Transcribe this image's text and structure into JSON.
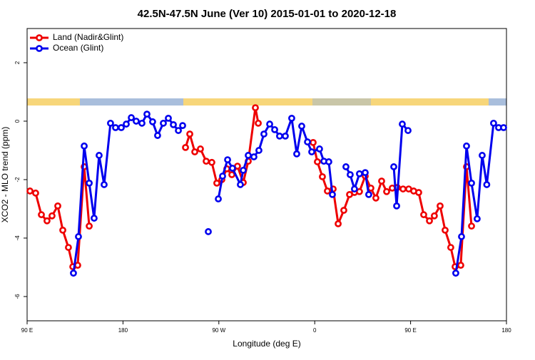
{
  "chart_data": {
    "type": "line",
    "title": "42.5N-47.5N June (Ver 10)   2015-01-01 to 2020-12-18",
    "x_label": "Longitude (deg E)",
    "y_label": "XCO2 - MLO trend (ppm)",
    "xlim": [
      90,
      540
    ],
    "xticks": [
      {
        "value": 90,
        "label": "90 E"
      },
      180,
      {
        "value": 270,
        "label": "90 W"
      },
      {
        "value": 360,
        "label": "0"
      },
      {
        "value": 450,
        "label": "90 E"
      },
      {
        "value": 540,
        "label": "180"
      }
    ],
    "ylim": [
      -6.83,
      3.17
    ],
    "yticks": [
      2,
      0,
      -2,
      -4,
      -6
    ],
    "legend": "top-left",
    "series": [
      {
        "name": "Land (Nadir&Glint)",
        "color": "#ee0000",
        "x": [
          92.7,
          98.0,
          103.4,
          108.7,
          113.4,
          118.8,
          123.5,
          128.8,
          132.9,
          137.5,
          143.6,
          148.3,
          null,
          238.7,
          242.7,
          247.4,
          252.7,
          258.1,
          263.4,
          268.1,
          272.8,
          277.5,
          282.2,
          287.5,
          292.9,
          297.6,
          304.3,
          307.0,
          null,
          358.5,
          362.5,
          367.2,
          371.9,
          377.3,
          382.0,
          387.3,
          392.7,
          397.3,
          402.0,
          407.4,
          412.7,
          417.4,
          422.8,
          427.5,
          432.8,
          437.5,
          442.9,
          448.2,
          452.9,
          457.6,
          462.3,
          467.7,
          472.3,
          477.7,
          482.4,
          487.7,
          491.8,
          497.1,
          502.5,
          507.2
        ],
        "values": [
          -2.39,
          -2.46,
          -3.2,
          -3.41,
          -3.24,
          -2.9,
          -3.73,
          -4.32,
          -4.98,
          -4.93,
          -1.56,
          -3.59,
          null,
          -0.9,
          -0.44,
          -1.05,
          -0.95,
          -1.37,
          -1.41,
          -2.12,
          -2.0,
          -1.63,
          -1.83,
          -1.54,
          -2.1,
          -1.37,
          0.46,
          -0.07,
          null,
          -0.73,
          -1.39,
          -1.9,
          -2.39,
          -2.32,
          -3.51,
          -3.05,
          -2.51,
          -2.44,
          -2.41,
          -1.88,
          -2.29,
          -2.63,
          -2.05,
          -2.41,
          -2.29,
          -2.27,
          -2.32,
          -2.32,
          -2.39,
          -2.44,
          -3.2,
          -3.41,
          -3.24,
          -2.9,
          -3.73,
          -4.32,
          -4.98,
          -4.93,
          -1.56,
          -3.59
        ]
      },
      {
        "name": "Ocean (Glint)",
        "color": "#0000ee",
        "x": [
          133.5,
          138.2,
          143.6,
          148.3,
          152.9,
          157.6,
          162.3,
          168.3,
          173.0,
          178.4,
          183.1,
          187.8,
          192.4,
          197.8,
          202.5,
          207.8,
          212.5,
          217.9,
          222.6,
          227.3,
          232.0,
          236.0,
          null,
          260.1,
          null,
          269.5,
          273.5,
          278.2,
          282.8,
          290.2,
          292.9,
          297.6,
          302.9,
          307.6,
          312.3,
          317.7,
          322.4,
          327.0,
          332.4,
          338.4,
          343.1,
          347.8,
          353.2,
          357.2,
          364.5,
          368.6,
          373.2,
          376.6,
          null,
          389.3,
          393.3,
          397.3,
          402.0,
          407.4,
          410.7,
          null,
          434.2,
          436.9,
          442.2,
          447.6,
          null,
          492.4,
          497.8,
          502.5,
          507.2,
          512.5,
          517.2,
          521.5,
          527.9,
          532.6,
          537.3
        ],
        "values": [
          -5.2,
          -3.95,
          -0.85,
          -2.12,
          -3.32,
          -1.17,
          -2.17,
          -0.07,
          -0.22,
          -0.22,
          -0.1,
          0.12,
          0,
          -0.07,
          0.24,
          -0.02,
          -0.49,
          -0.07,
          0.1,
          -0.12,
          -0.32,
          -0.15,
          null,
          -3.78,
          null,
          -2.66,
          -1.88,
          -1.32,
          -1.61,
          -2.17,
          -1.68,
          -1.17,
          -1.22,
          -1.0,
          -0.44,
          -0.1,
          -0.29,
          -0.51,
          -0.51,
          0.1,
          -1.12,
          -0.17,
          -0.71,
          -1.05,
          -0.95,
          -1.37,
          -1.39,
          -2.51,
          null,
          -1.56,
          -1.83,
          -2.32,
          -1.8,
          -1.76,
          -2.51,
          null,
          -1.56,
          -2.9,
          -0.1,
          -0.32,
          null,
          -5.2,
          -3.95,
          -0.85,
          -2.12,
          -3.34,
          -1.17,
          -2.17,
          -0.07,
          -0.22,
          -0.22
        ]
      }
    ]
  }
}
